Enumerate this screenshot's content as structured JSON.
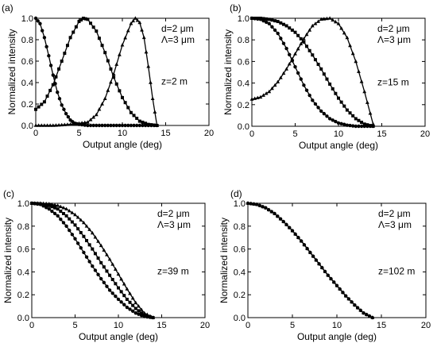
{
  "chart_data": [
    {
      "type": "line",
      "panel_label": "(a)",
      "xlabel": "Output angle (deg)",
      "ylabel": "Normalized intensity",
      "xlim": [
        0,
        20
      ],
      "ylim": [
        0,
        1.0
      ],
      "xticks": [
        "0",
        "5",
        "10",
        "15",
        "20"
      ],
      "yticks": [
        "0.0",
        "0.2",
        "0.4",
        "0.6",
        "0.8",
        "1.0"
      ],
      "annotations": [
        "d=2 μm",
        "Λ=3 μm",
        "z=2 m"
      ],
      "series": [
        {
          "marker": "circle",
          "x": [
            0,
            0.5,
            1,
            1.5,
            2,
            2.5,
            3,
            3.5,
            4,
            4.5,
            5,
            6,
            7,
            8,
            9,
            10,
            11,
            12,
            13,
            14
          ],
          "y": [
            1.0,
            0.95,
            0.82,
            0.65,
            0.47,
            0.31,
            0.19,
            0.11,
            0.05,
            0.02,
            0.01,
            0,
            0,
            0,
            0,
            0,
            0,
            0,
            0,
            0
          ]
        },
        {
          "marker": "square",
          "x": [
            0,
            1,
            2,
            3,
            4,
            5,
            5.5,
            6,
            7,
            8,
            9,
            10,
            11,
            12,
            13,
            14
          ],
          "y": [
            0.15,
            0.22,
            0.38,
            0.6,
            0.82,
            0.97,
            1.0,
            0.99,
            0.88,
            0.68,
            0.45,
            0.26,
            0.12,
            0.04,
            0.01,
            0
          ]
        },
        {
          "marker": "triangle",
          "x": [
            0,
            2,
            4,
            6,
            7,
            8,
            9,
            10,
            11,
            11.5,
            12,
            12.5,
            13,
            13.5,
            14
          ],
          "y": [
            0,
            0,
            0.01,
            0.03,
            0.1,
            0.25,
            0.48,
            0.75,
            0.95,
            1.0,
            0.96,
            0.82,
            0.55,
            0.25,
            0
          ]
        }
      ]
    },
    {
      "type": "line",
      "panel_label": "(b)",
      "xlabel": "Output angle (deg)",
      "ylabel": "Normalized intensity",
      "xlim": [
        0,
        20
      ],
      "ylim": [
        0,
        1.0
      ],
      "xticks": [
        "0",
        "5",
        "10",
        "15",
        "20"
      ],
      "yticks": [
        "0.0",
        "0.2",
        "0.4",
        "0.6",
        "0.8",
        "1.0"
      ],
      "annotations": [
        "d=2 μm",
        "Λ=3 μm",
        "z=15 m"
      ],
      "series": [
        {
          "marker": "circle",
          "x": [
            0,
            1,
            2,
            3,
            4,
            5,
            6,
            7,
            8,
            9,
            10,
            11,
            12,
            13,
            14
          ],
          "y": [
            1.0,
            0.99,
            0.95,
            0.86,
            0.72,
            0.55,
            0.38,
            0.24,
            0.14,
            0.07,
            0.03,
            0.01,
            0,
            0,
            0
          ]
        },
        {
          "marker": "square",
          "x": [
            0,
            1,
            2,
            3,
            4,
            5,
            6,
            7,
            8,
            9,
            10,
            11,
            12,
            13,
            14
          ],
          "y": [
            1.0,
            1.0,
            0.99,
            0.97,
            0.93,
            0.87,
            0.78,
            0.66,
            0.53,
            0.39,
            0.26,
            0.15,
            0.07,
            0.02,
            0
          ]
        },
        {
          "marker": "triangle",
          "x": [
            0,
            1,
            2,
            3,
            4,
            5,
            6,
            7,
            8,
            9,
            10,
            11,
            12,
            13,
            14
          ],
          "y": [
            0.25,
            0.27,
            0.32,
            0.41,
            0.53,
            0.67,
            0.81,
            0.93,
            0.99,
            1.0,
            0.95,
            0.82,
            0.6,
            0.32,
            0.02
          ]
        }
      ]
    },
    {
      "type": "line",
      "panel_label": "(c)",
      "xlabel": "Output angle (deg)",
      "ylabel": "Normalized intensity",
      "xlim": [
        0,
        20
      ],
      "ylim": [
        0,
        1.0
      ],
      "xticks": [
        "0",
        "5",
        "10",
        "15",
        "20"
      ],
      "yticks": [
        "0.0",
        "0.2",
        "0.4",
        "0.6",
        "0.8",
        "1.0"
      ],
      "annotations": [
        "d=2 μm",
        "Λ=3 μm",
        "z=39 m"
      ],
      "series": [
        {
          "marker": "circle",
          "x": [
            0,
            1,
            2,
            3,
            4,
            5,
            6,
            7,
            8,
            9,
            10,
            11,
            12,
            13,
            14
          ],
          "y": [
            1.0,
            0.99,
            0.95,
            0.89,
            0.8,
            0.69,
            0.57,
            0.45,
            0.34,
            0.24,
            0.16,
            0.09,
            0.04,
            0.01,
            0
          ]
        },
        {
          "marker": "square",
          "x": [
            0,
            1,
            2,
            3,
            4,
            5,
            6,
            7,
            8,
            9,
            10,
            11,
            12,
            13,
            14
          ],
          "y": [
            1.0,
            0.995,
            0.98,
            0.95,
            0.89,
            0.81,
            0.71,
            0.6,
            0.48,
            0.37,
            0.26,
            0.16,
            0.08,
            0.02,
            0
          ]
        },
        {
          "marker": "triangle",
          "x": [
            0,
            1,
            2,
            3,
            4,
            5,
            6,
            7,
            8,
            9,
            10,
            11,
            12,
            13,
            14
          ],
          "y": [
            1.0,
            1.0,
            0.995,
            0.98,
            0.95,
            0.9,
            0.83,
            0.74,
            0.63,
            0.51,
            0.38,
            0.25,
            0.13,
            0.04,
            0
          ]
        }
      ]
    },
    {
      "type": "line",
      "panel_label": "(d)",
      "xlabel": "Output angle (deg)",
      "ylabel": "Normalized intensity",
      "xlim": [
        0,
        20
      ],
      "ylim": [
        0,
        1.0
      ],
      "xticks": [
        "0",
        "5",
        "10",
        "15",
        "20"
      ],
      "yticks": [
        "0.0",
        "0.2",
        "0.4",
        "0.6",
        "0.8",
        "1.0"
      ],
      "annotations": [
        "d=2 μm",
        "Λ=3 μm",
        "z=102 m"
      ],
      "series": [
        {
          "marker": "circle",
          "x": [
            0,
            1,
            2,
            3,
            4,
            5,
            6,
            7,
            8,
            9,
            10,
            11,
            12,
            13,
            14
          ],
          "y": [
            1.0,
            0.99,
            0.96,
            0.91,
            0.84,
            0.76,
            0.67,
            0.57,
            0.47,
            0.37,
            0.28,
            0.19,
            0.11,
            0.04,
            0
          ]
        },
        {
          "marker": "triangle",
          "x": [
            0,
            1,
            2,
            3,
            4,
            5,
            6,
            7,
            8,
            9,
            10,
            11,
            12,
            13,
            14
          ],
          "y": [
            1.0,
            0.99,
            0.96,
            0.91,
            0.84,
            0.76,
            0.67,
            0.57,
            0.47,
            0.37,
            0.28,
            0.19,
            0.11,
            0.04,
            0
          ]
        }
      ]
    }
  ]
}
